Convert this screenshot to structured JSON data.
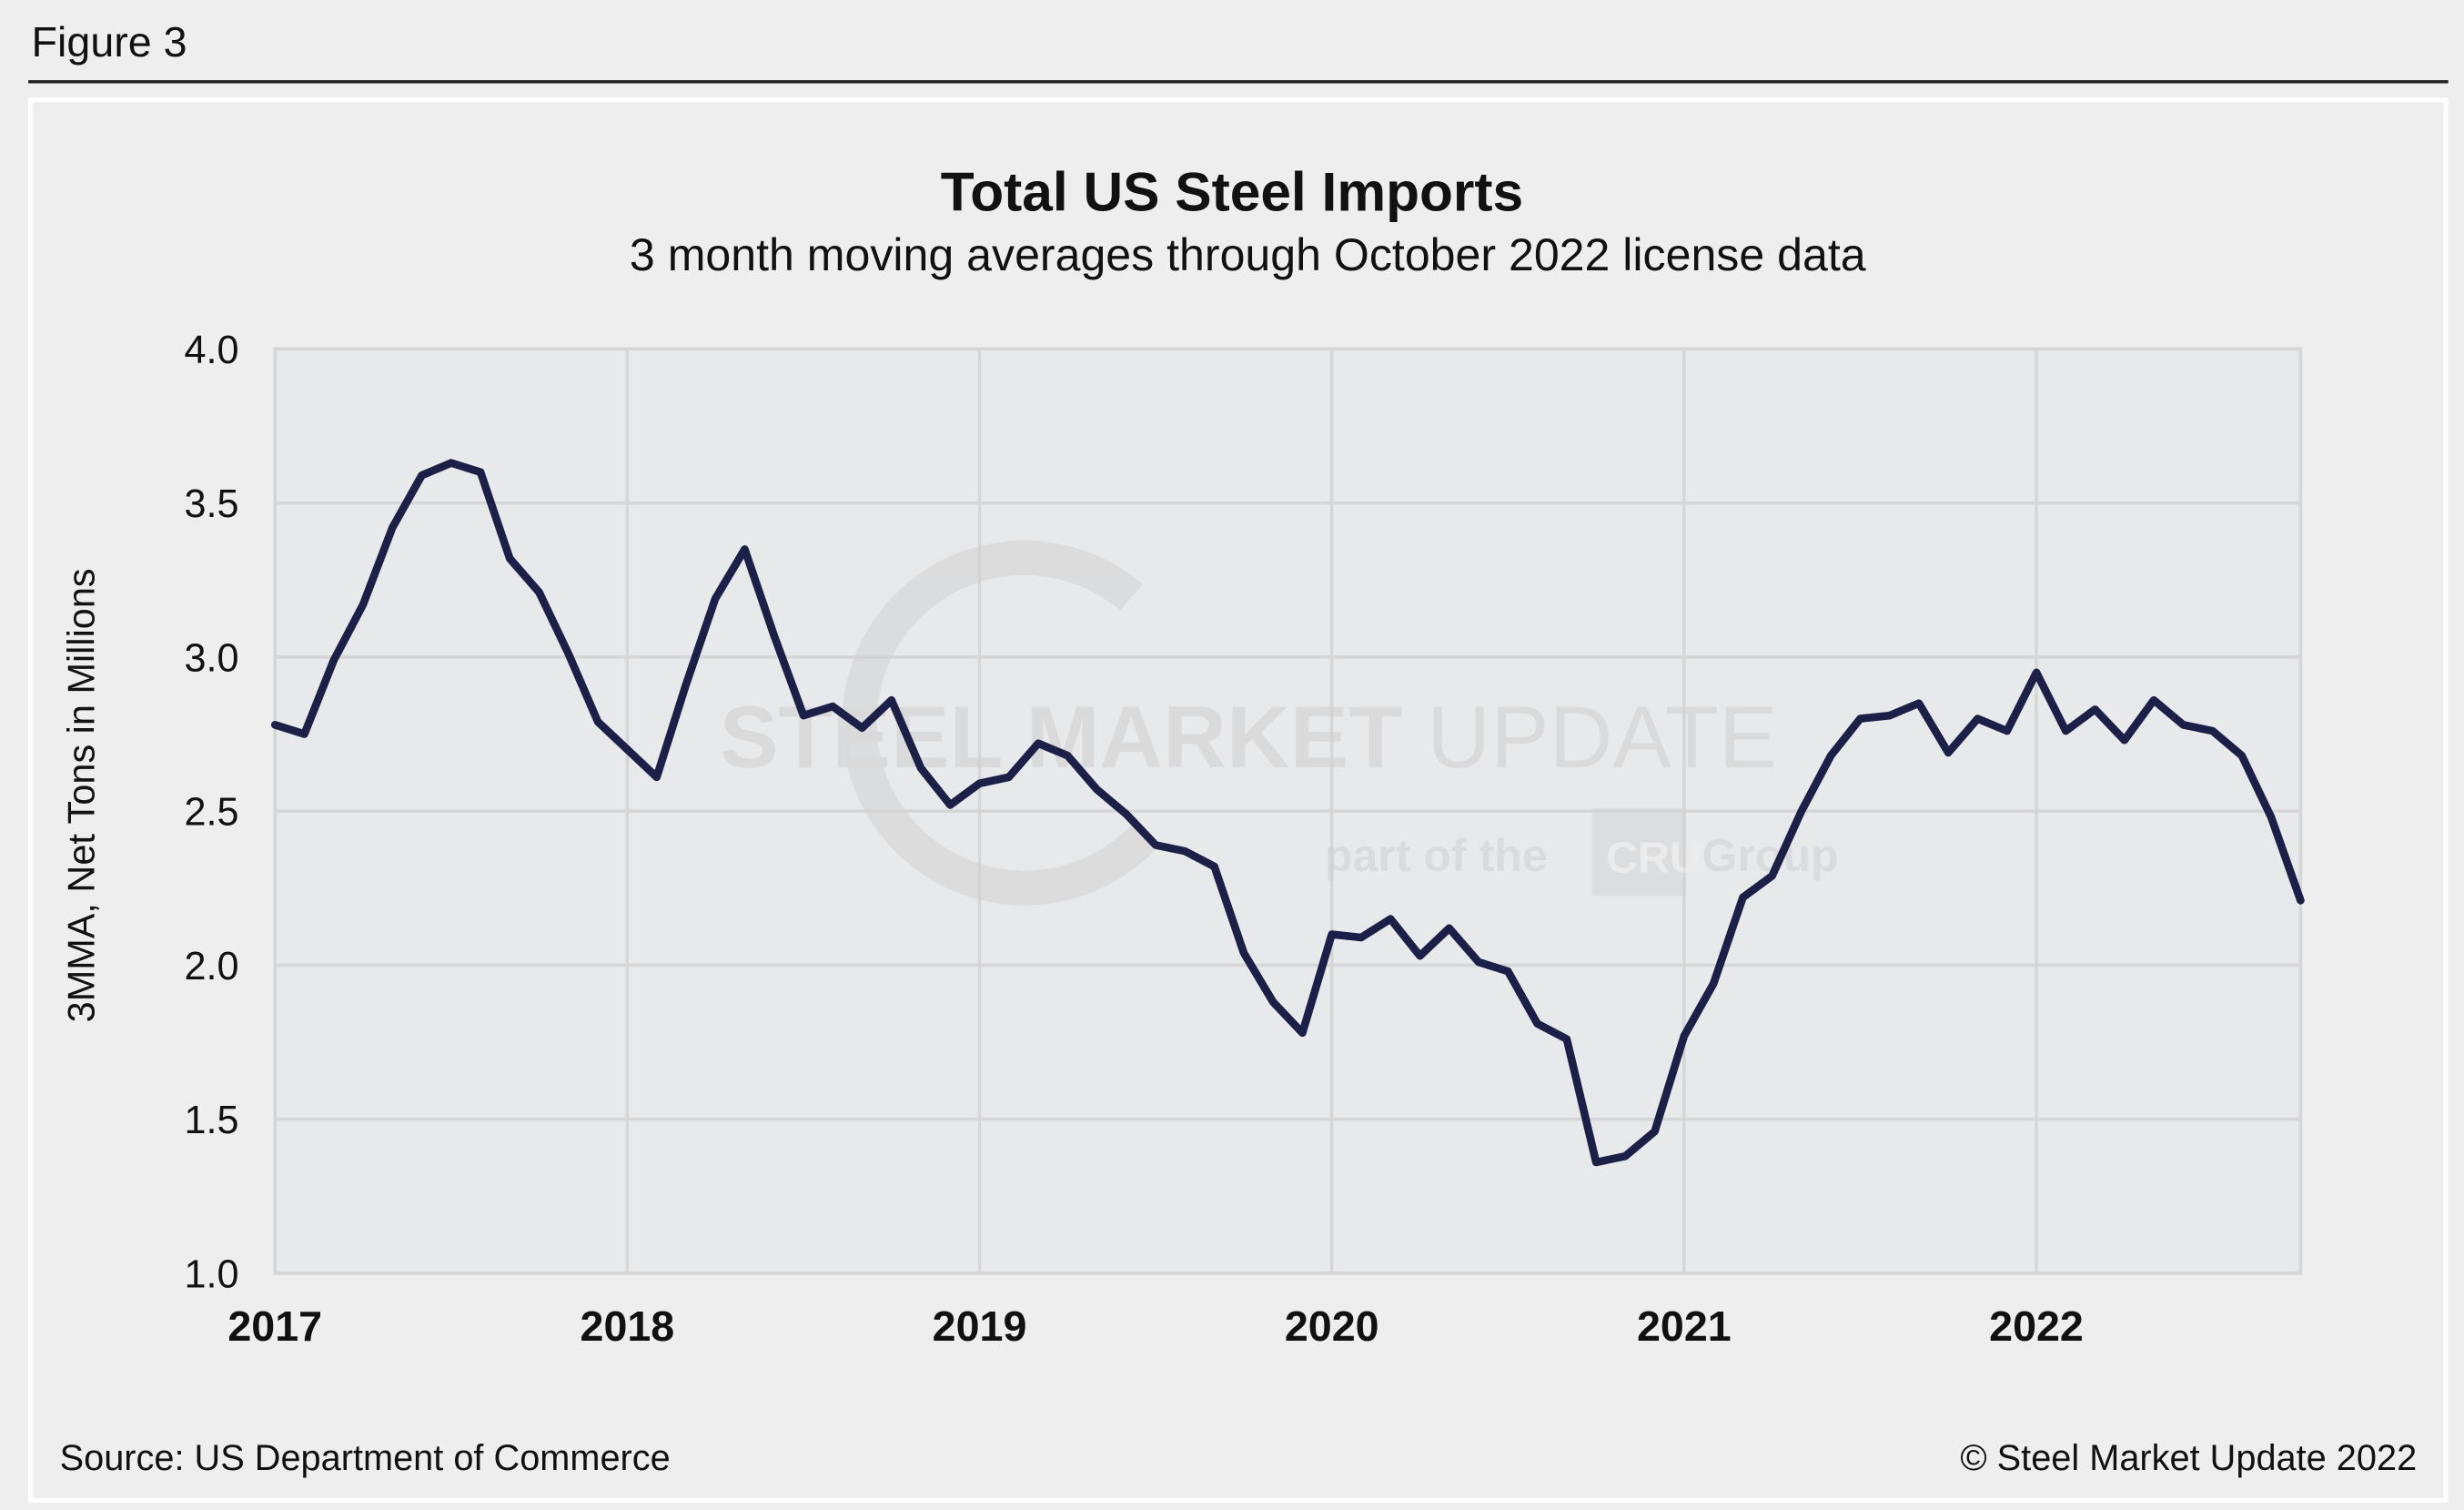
{
  "figure_label": "Figure 3",
  "source": "Source: US Department of Commerce",
  "copyright": "© Steel Market Update 2022",
  "watermark": {
    "line1": "STEEL MARKET UPDATE",
    "line2_pre": "part of the",
    "line2_logo": "CRU",
    "line2_post": "Group"
  },
  "colors": {
    "line": "#1c2048",
    "plot_bg": "#e8e9eb",
    "grid": "#d6d6d6",
    "background": "#eeeeee"
  },
  "chart_data": {
    "type": "line",
    "title": "Total US Steel Imports",
    "subtitle": "3 month moving averages through October 2022 license data",
    "ylabel": "3MMA, Net Tons in Millions",
    "xlabel": "",
    "ylim": [
      1.0,
      4.0
    ],
    "yticks": [
      "1.0",
      "1.5",
      "2.0",
      "2.5",
      "3.0",
      "3.5",
      "4.0"
    ],
    "xticks": [
      "2017",
      "2018",
      "2019",
      "2020",
      "2021",
      "2022"
    ],
    "x_range": [
      "2017-01",
      "2022-10"
    ],
    "grid": true,
    "legend": "none",
    "series": [
      {
        "x": [
          "2017-01",
          "2017-02",
          "2017-03",
          "2017-04",
          "2017-05",
          "2017-06",
          "2017-07",
          "2017-08",
          "2017-09",
          "2017-10",
          "2017-11",
          "2017-12",
          "2018-01",
          "2018-02",
          "2018-03",
          "2018-04",
          "2018-05",
          "2018-06",
          "2018-07",
          "2018-08",
          "2018-09",
          "2018-10",
          "2018-11",
          "2018-12",
          "2019-01",
          "2019-02",
          "2019-03",
          "2019-04",
          "2019-05",
          "2019-06",
          "2019-07",
          "2019-08",
          "2019-09",
          "2019-10",
          "2019-11",
          "2019-12",
          "2020-01",
          "2020-02",
          "2020-03",
          "2020-04",
          "2020-05",
          "2020-06",
          "2020-07",
          "2020-08",
          "2020-09",
          "2020-10",
          "2020-11",
          "2020-12",
          "2021-01",
          "2021-02",
          "2021-03",
          "2021-04",
          "2021-05",
          "2021-06",
          "2021-07",
          "2021-08",
          "2021-09",
          "2021-10",
          "2021-11",
          "2021-12",
          "2022-01",
          "2022-02",
          "2022-03",
          "2022-04",
          "2022-05",
          "2022-06",
          "2022-07",
          "2022-08",
          "2022-09",
          "2022-10"
        ],
        "values": [
          2.78,
          2.75,
          2.99,
          3.17,
          3.42,
          3.59,
          3.63,
          3.6,
          3.32,
          3.21,
          3.01,
          2.79,
          2.7,
          2.61,
          2.91,
          3.19,
          3.35,
          3.07,
          2.81,
          2.84,
          2.77,
          2.86,
          2.64,
          2.52,
          2.59,
          2.61,
          2.72,
          2.68,
          2.57,
          2.49,
          2.39,
          2.37,
          2.32,
          2.04,
          1.88,
          1.78,
          2.1,
          2.09,
          2.15,
          2.03,
          2.12,
          2.01,
          1.98,
          1.81,
          1.76,
          1.36,
          1.38,
          1.46,
          1.77,
          1.94,
          2.22,
          2.29,
          2.5,
          2.68,
          2.8,
          2.81,
          2.85,
          2.69,
          2.8,
          2.76,
          2.95,
          2.76,
          2.83,
          2.73,
          2.86,
          2.78,
          2.76,
          2.68,
          2.48,
          2.21
        ]
      }
    ]
  }
}
